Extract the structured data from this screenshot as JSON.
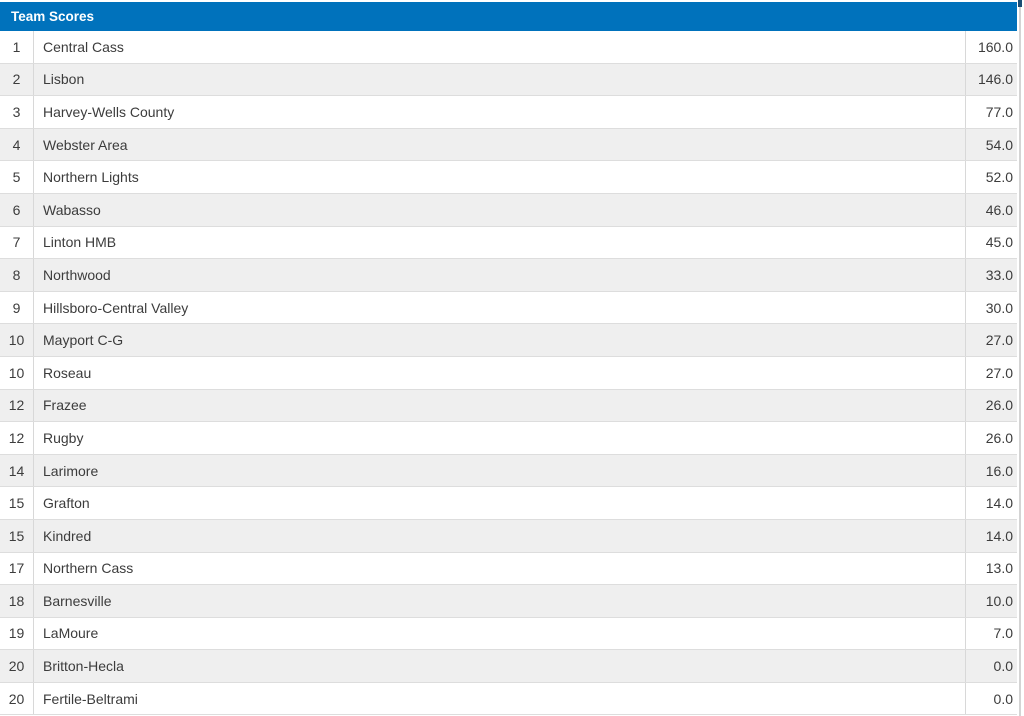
{
  "panel": {
    "title": "Team Scores"
  },
  "table": {
    "rows": [
      {
        "rank": "1",
        "team": "Central Cass",
        "score": "160.0"
      },
      {
        "rank": "2",
        "team": "Lisbon",
        "score": "146.0"
      },
      {
        "rank": "3",
        "team": "Harvey-Wells County",
        "score": "77.0"
      },
      {
        "rank": "4",
        "team": "Webster Area",
        "score": "54.0"
      },
      {
        "rank": "5",
        "team": "Northern Lights",
        "score": "52.0"
      },
      {
        "rank": "6",
        "team": "Wabasso",
        "score": "46.0"
      },
      {
        "rank": "7",
        "team": "Linton HMB",
        "score": "45.0"
      },
      {
        "rank": "8",
        "team": "Northwood",
        "score": "33.0"
      },
      {
        "rank": "9",
        "team": "Hillsboro-Central Valley",
        "score": "30.0"
      },
      {
        "rank": "10",
        "team": "Mayport C-G",
        "score": "27.0"
      },
      {
        "rank": "10",
        "team": "Roseau",
        "score": "27.0"
      },
      {
        "rank": "12",
        "team": "Frazee",
        "score": "26.0"
      },
      {
        "rank": "12",
        "team": "Rugby",
        "score": "26.0"
      },
      {
        "rank": "14",
        "team": "Larimore",
        "score": "16.0"
      },
      {
        "rank": "15",
        "team": "Grafton",
        "score": "14.0"
      },
      {
        "rank": "15",
        "team": "Kindred",
        "score": "14.0"
      },
      {
        "rank": "17",
        "team": "Northern Cass",
        "score": "13.0"
      },
      {
        "rank": "18",
        "team": "Barnesville",
        "score": "10.0"
      },
      {
        "rank": "19",
        "team": "LaMoure",
        "score": "7.0"
      },
      {
        "rank": "20",
        "team": "Britton-Hecla",
        "score": "0.0"
      },
      {
        "rank": "20",
        "team": "Fertile-Beltrami",
        "score": "0.0"
      }
    ]
  },
  "colors": {
    "header_bg": "#0072bc",
    "stripe_bg": "#efefef",
    "scrollbar_thumb": "#1b4d74"
  }
}
